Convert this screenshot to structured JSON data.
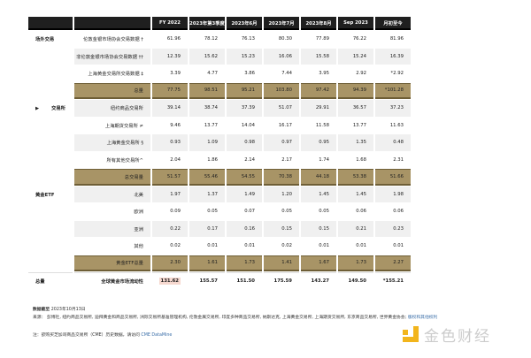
{
  "headers": [
    "",
    "",
    "FY 2022",
    "2023年第3季度",
    "2023年6月",
    "2023年7月",
    "2023年8月",
    "Sep 2023",
    "月初至今"
  ],
  "rows": [
    {
      "section": "场外交易",
      "label": "伦敦金银市场协会交易数据 †",
      "values": [
        "61.96",
        "78.12",
        "76.13",
        "80.30",
        "77.89",
        "76.22",
        "81.96"
      ],
      "type": "normal"
    },
    {
      "section": "",
      "label": "非伦敦金银市场协会交易数据 ††",
      "values": [
        "12.39",
        "15.62",
        "15.23",
        "16.06",
        "15.58",
        "15.24",
        "16.39"
      ],
      "type": "alt"
    },
    {
      "section": "",
      "label": "上海黄金交易所交易数据 ‡",
      "values": [
        "3.39",
        "4.77",
        "3.86",
        "7.44",
        "3.95",
        "2.92",
        "*2.92"
      ],
      "type": "normal"
    },
    {
      "section": "",
      "label": "总量",
      "values": [
        "77.75",
        "98.51",
        "95.21",
        "103.80",
        "97.42",
        "94.39",
        "*101.28"
      ],
      "type": "tot"
    },
    {
      "section": "交易所",
      "label": "纽约商品交易所",
      "values": [
        "39.14",
        "38.74",
        "37.39",
        "51.07",
        "29.91",
        "36.57",
        "37.23"
      ],
      "type": "alt"
    },
    {
      "section": "",
      "label": "上海期货交易所 ≠",
      "values": [
        "9.46",
        "13.77",
        "14.04",
        "16.17",
        "11.58",
        "13.77",
        "11.63"
      ],
      "type": "normal"
    },
    {
      "section": "",
      "label": "上海黄金交易所 §",
      "values": [
        "0.93",
        "1.09",
        "0.98",
        "0.97",
        "0.95",
        "1.35",
        "0.48"
      ],
      "type": "alt"
    },
    {
      "section": "",
      "label": "所有其他交易所^",
      "values": [
        "2.04",
        "1.86",
        "2.14",
        "2.17",
        "1.74",
        "1.68",
        "2.31"
      ],
      "type": "normal"
    },
    {
      "section": "",
      "label": "总交易量",
      "values": [
        "51.57",
        "55.46",
        "54.55",
        "70.38",
        "44.18",
        "53.38",
        "51.66"
      ],
      "type": "tot"
    },
    {
      "section": "黄金ETF",
      "label": "北美",
      "values": [
        "1.97",
        "1.37",
        "1.49",
        "1.20",
        "1.45",
        "1.45",
        "1.98"
      ],
      "type": "alt"
    },
    {
      "section": "",
      "label": "欧洲",
      "values": [
        "0.09",
        "0.05",
        "0.07",
        "0.05",
        "0.05",
        "0.06",
        "0.06"
      ],
      "type": "normal"
    },
    {
      "section": "",
      "label": "亚洲",
      "values": [
        "0.22",
        "0.17",
        "0.16",
        "0.15",
        "0.15",
        "0.21",
        "0.23"
      ],
      "type": "alt"
    },
    {
      "section": "",
      "label": "其他",
      "values": [
        "0.02",
        "0.01",
        "0.01",
        "0.02",
        "0.01",
        "0.01",
        "0.01"
      ],
      "type": "normal"
    },
    {
      "section": "",
      "label": "黄金ETF总量",
      "values": [
        "2.30",
        "1.61",
        "1.73",
        "1.41",
        "1.67",
        "1.73",
        "2.27"
      ],
      "type": "tot"
    },
    {
      "section": "总量",
      "label": "全球黄金市场流动性",
      "values": [
        "131.62",
        "155.57",
        "151.50",
        "175.59",
        "143.27",
        "149.50",
        "*155.21"
      ],
      "type": "grand"
    }
  ],
  "footer": {
    "date_label": "数据截至",
    "date": "2023年10月13日",
    "source_label": "来源：",
    "sources": "彭博社, 纽约商品交易所, 迪拜黄金和商品交易所, 洲际交易所基准管理机构, 伦敦金属交易所, 印度多种商品交易所, 纳斯达克, 上海黄金交易所, 上海期货交易所, 东京商品交易所, 世界黄金协会;",
    "rights_link": "版权和其他权利",
    "note": "注：欲购买芝加哥商品交易所（CME）历史数据，请访问",
    "cme_link": "CME DataMine"
  },
  "logo": {
    "text": "金色财经"
  },
  "colors": {
    "header": "#1f1f1f",
    "total_row": "#a89466",
    "alt_row": "#f0f0f0",
    "link": "#3a6ea8",
    "logo": "#f2b51c"
  }
}
